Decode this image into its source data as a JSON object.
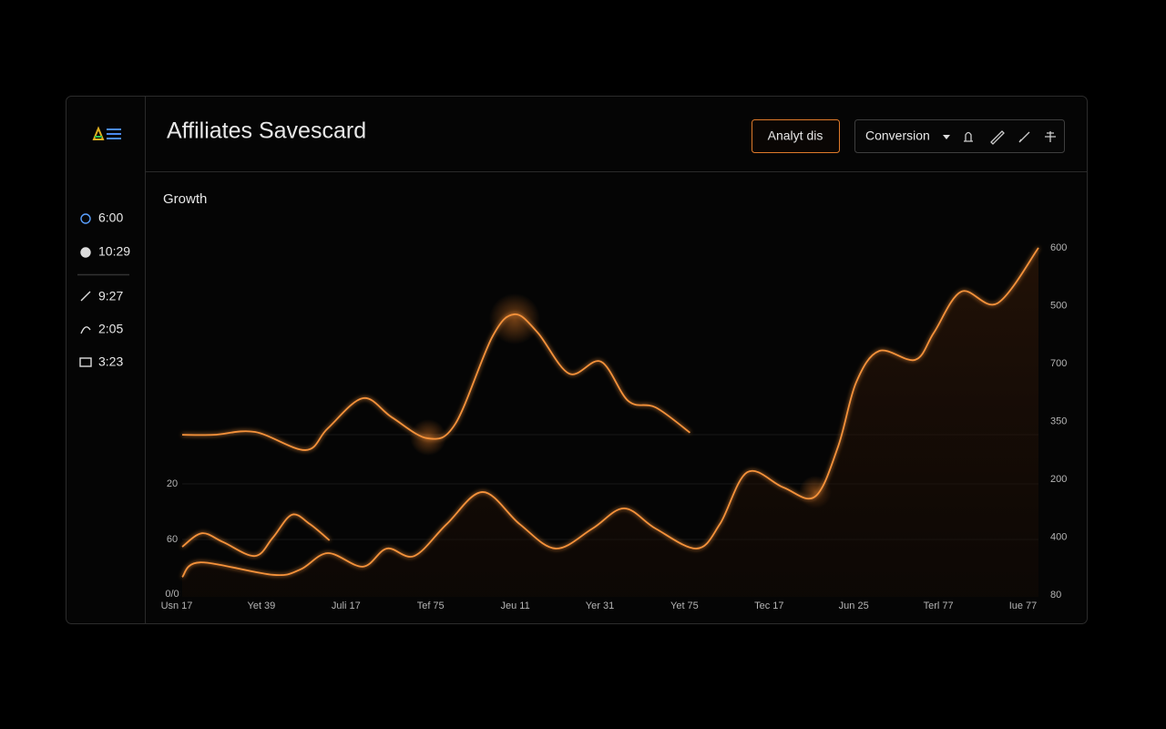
{
  "header": {
    "title": "Affiliates Savescard",
    "button": "Analyt dis",
    "dropdown": "Conversion"
  },
  "sidebar": {
    "stats": [
      "6:00",
      "10:29",
      "9:27",
      "2:05",
      "3:23"
    ]
  },
  "chart_data": {
    "type": "line",
    "title": "Growth",
    "xlim": [
      0,
      100
    ],
    "ylim": [
      0,
      100
    ],
    "x_labels": [
      "Usn 17",
      "Yet 39",
      "Juli 17",
      "Tef 75",
      "Jeu 11",
      "Yer 31",
      "Yet 75",
      "Tec 17",
      "Jun 25",
      "Terl 77",
      "Iue 77"
    ],
    "y_labels_left": [
      "20",
      "60",
      "0/0"
    ],
    "y_labels_right": [
      "600",
      "500",
      "700",
      "350",
      "200",
      "400",
      "80"
    ],
    "series": [
      {
        "color": "#f5923a",
        "fill": false,
        "x": [
          0,
          3.7,
          8.5,
          14.4,
          17.0,
          21.1,
          24.5,
          28.7,
          31.9,
          36.2,
          38.8,
          41.5,
          45.2,
          48.9,
          52.1,
          55.3,
          59.3
        ],
        "values": [
          45.6,
          45.6,
          46.4,
          41.3,
          47.4,
          55.9,
          50.5,
          44.6,
          48.7,
          73.1,
          79.5,
          74.4,
          62.8,
          66.2,
          55.1,
          53.3,
          46.2
        ]
      },
      {
        "color": "#f5923a",
        "fill": true,
        "x": [
          0,
          2.1,
          10.6,
          13.8,
          17.0,
          21.1,
          23.9,
          27.1,
          30.9,
          35.1,
          39.4,
          43.6,
          47.9,
          51.6,
          55.3,
          60.1,
          62.8,
          66.0,
          70.2,
          73.9,
          76.6,
          78.7,
          81.4,
          85.6,
          87.8,
          91.0,
          95.2,
          100
        ],
        "values": [
          5.6,
          9.7,
          6.2,
          7.7,
          12.3,
          8.5,
          13.6,
          11.5,
          20.5,
          29.5,
          20.5,
          13.6,
          19.2,
          24.9,
          19.2,
          13.6,
          20.5,
          35.1,
          30.8,
          28.2,
          42.3,
          60.3,
          69.2,
          66.7,
          74.4,
          85.9,
          82.6,
          98.2
        ]
      },
      {
        "color": "#f5923a",
        "fill": false,
        "x": [
          0,
          2.3,
          4.8,
          8.5,
          10.6,
          12.8,
          14.9,
          17.2
        ],
        "values": [
          14.1,
          17.9,
          15.4,
          11.5,
          16.7,
          23.1,
          20.5,
          15.9
        ]
      }
    ]
  }
}
